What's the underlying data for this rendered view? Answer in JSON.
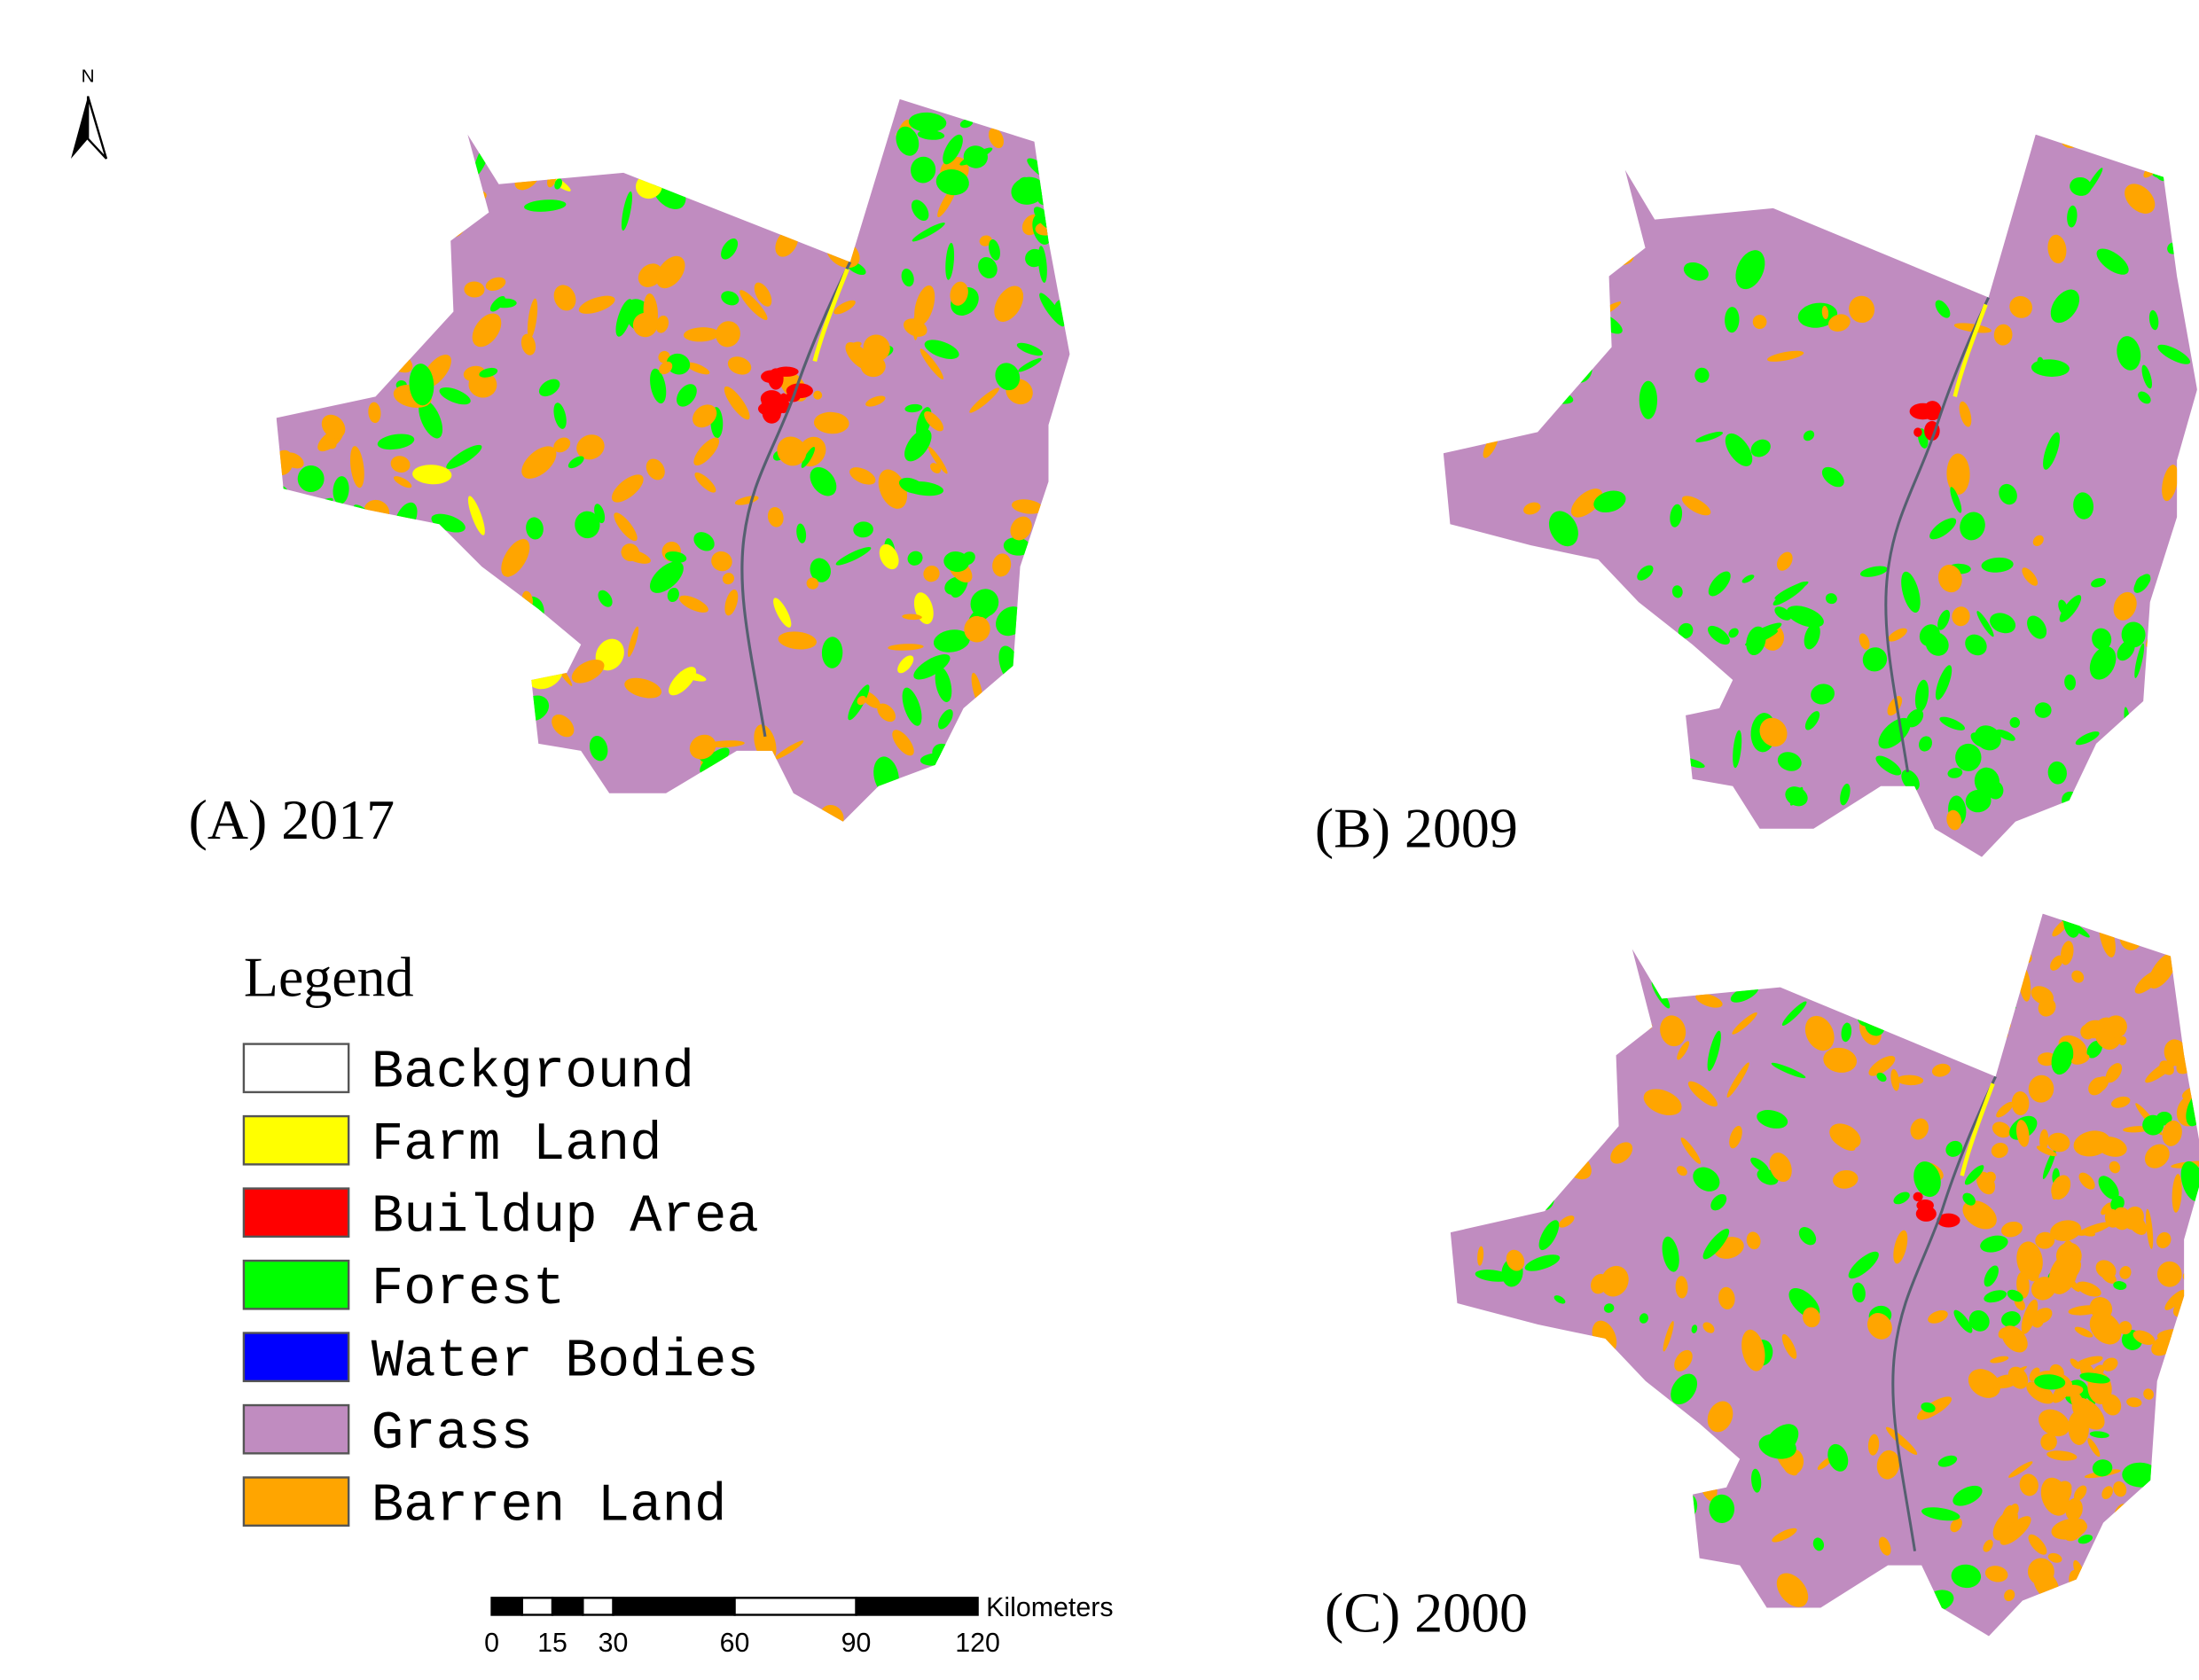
{
  "north_arrow": {
    "label": "N"
  },
  "panels": [
    {
      "label": "(A) 2017"
    },
    {
      "label": "(B) 2009"
    },
    {
      "label": "(C) 2000"
    }
  ],
  "legend": {
    "title": "Legend",
    "items": [
      {
        "label": "Background",
        "color": "#ffffff"
      },
      {
        "label": "Farm Land",
        "color": "#ffff00"
      },
      {
        "label": "Buildup Area",
        "color": "#ff0000"
      },
      {
        "label": "Forest",
        "color": "#00ff00"
      },
      {
        "label": "Water Bodies",
        "color": "#0000ff"
      },
      {
        "label": "Grass",
        "color": "#c08cc0"
      },
      {
        "label": "Barren Land",
        "color": "#ffa500"
      }
    ]
  },
  "scale_bar": {
    "unit": "Kilometers",
    "ticks": [
      0,
      15,
      30,
      60,
      90,
      120
    ]
  }
}
